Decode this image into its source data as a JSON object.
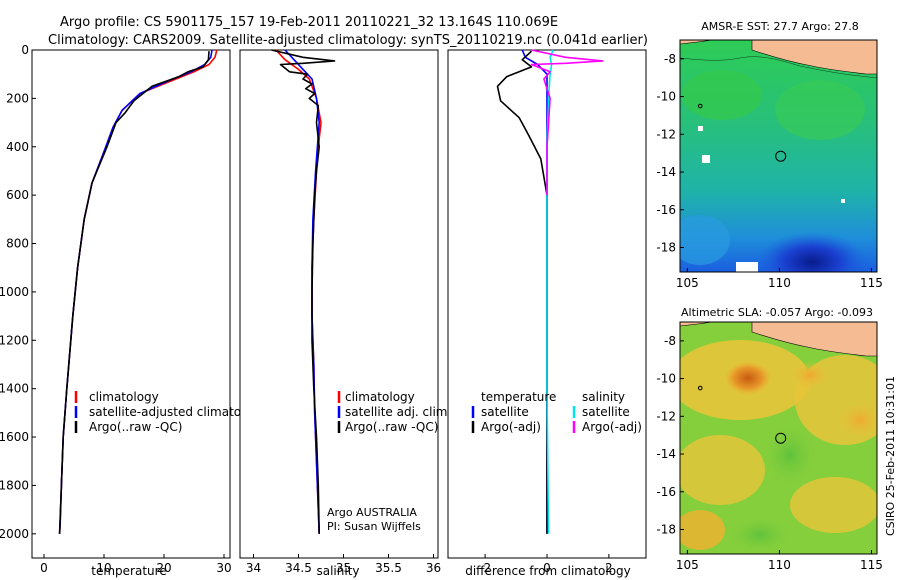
{
  "header": {
    "line1": "Argo profile: CS 5901175_157 19-Feb-2011 20110221_32 13.164S 110.069E",
    "line2": "Climatology: CARS2009. Satellite-adjusted climatology: synTS_20110219.nc (0.041d earlier)"
  },
  "side_label": "CSIRO 25-Feb-2011 10:31:01",
  "colors": {
    "climatology": "#ff0000",
    "satellite": "#0000ff",
    "argo": "#000000",
    "salinity_satellite": "#00e5ee",
    "salinity_argo": "#ff00ff",
    "land": "#f5bc94"
  },
  "chart_data": [
    {
      "id": "temperature",
      "type": "line",
      "xlabel": "temperature",
      "ylabel": "",
      "xlim": [
        -2,
        31
      ],
      "ylim": [
        2100,
        0
      ],
      "xticks": [
        0,
        10,
        20,
        30
      ],
      "yticks": [
        0,
        200,
        400,
        600,
        800,
        1000,
        1200,
        1400,
        1600,
        1800,
        2000
      ],
      "legend": [
        "climatology",
        "satellite-adjusted climatology",
        "Argo(..raw -QC)"
      ],
      "series": [
        {
          "name": "climatology",
          "color": "#ff0000",
          "x": [
            28.8,
            28.5,
            27.5,
            25,
            21,
            16,
            13,
            11.5,
            10,
            8,
            6.7,
            5.6,
            4.8,
            3.8,
            3.2,
            2.9,
            2.7,
            2.6
          ],
          "y": [
            0,
            30,
            60,
            90,
            130,
            180,
            250,
            320,
            420,
            550,
            700,
            900,
            1100,
            1400,
            1600,
            1800,
            1950,
            2000
          ]
        },
        {
          "name": "satellite-adjusted climatology",
          "color": "#0000ff",
          "x": [
            28,
            27.8,
            26.8,
            24.5,
            20.5,
            16,
            13,
            11.5,
            10,
            8,
            6.7,
            5.6,
            4.8,
            3.8,
            3.2,
            2.9,
            2.7,
            2.6
          ],
          "y": [
            0,
            30,
            60,
            90,
            130,
            180,
            250,
            320,
            420,
            550,
            700,
            900,
            1100,
            1400,
            1600,
            1800,
            1950,
            2000
          ]
        },
        {
          "name": "Argo(..raw -QC)",
          "color": "#000000",
          "x": [
            27.5,
            27.4,
            26.5,
            24,
            22.5,
            18,
            15,
            13.5,
            12,
            10.5,
            8,
            6.7,
            5.6,
            4.8,
            3.8,
            3.2,
            2.9,
            2.6
          ],
          "y": [
            5,
            40,
            70,
            90,
            110,
            150,
            210,
            260,
            300,
            400,
            550,
            700,
            900,
            1100,
            1400,
            1600,
            1800,
            2000
          ]
        }
      ]
    },
    {
      "id": "salinity",
      "type": "line",
      "xlabel": "salinity",
      "ylabel": "",
      "xlim": [
        33.85,
        36.05
      ],
      "ylim": [
        2100,
        0
      ],
      "xticks": [
        34,
        34.5,
        35,
        35.5,
        36
      ],
      "legend": [
        "climatology",
        "satellite adj. clim.",
        "Argo(..raw -QC)"
      ],
      "annotation": [
        "Argo AUSTRALIA",
        "PI: Susan Wijffels"
      ],
      "series": [
        {
          "name": "climatology",
          "color": "#ff0000",
          "x": [
            34.25,
            34.35,
            34.5,
            34.62,
            34.7,
            34.75,
            34.72,
            34.7,
            34.67,
            34.65,
            34.65,
            34.67,
            34.68,
            34.7,
            34.72,
            34.73
          ],
          "y": [
            0,
            40,
            80,
            120,
            200,
            300,
            400,
            500,
            700,
            900,
            1100,
            1300,
            1500,
            1700,
            1900,
            2000
          ]
        },
        {
          "name": "satellite adj. clim.",
          "color": "#0000ff",
          "x": [
            34.35,
            34.45,
            34.55,
            34.65,
            34.7,
            34.73,
            34.71,
            34.69,
            34.66,
            34.65,
            34.65,
            34.67,
            34.68,
            34.7,
            34.72,
            34.73
          ],
          "y": [
            0,
            40,
            80,
            120,
            200,
            300,
            400,
            500,
            700,
            900,
            1100,
            1300,
            1500,
            1700,
            1900,
            2000
          ]
        },
        {
          "name": "Argo(..raw -QC)",
          "color": "#000000",
          "x": [
            34.2,
            34.55,
            34.9,
            34.55,
            34.3,
            34.4,
            34.6,
            34.55,
            34.65,
            34.58,
            34.68,
            34.62,
            34.72,
            34.7,
            34.73,
            34.7,
            34.68,
            34.66,
            34.65,
            34.65,
            34.67,
            34.7,
            34.72,
            34.73
          ],
          "y": [
            0,
            30,
            45,
            55,
            60,
            90,
            100,
            120,
            140,
            160,
            180,
            200,
            230,
            300,
            400,
            500,
            600,
            800,
            1000,
            1200,
            1400,
            1600,
            1800,
            2000
          ]
        }
      ]
    },
    {
      "id": "difference",
      "type": "line",
      "xlabel": "difference from climatology",
      "ylabel": "",
      "xlim": [
        -3.2,
        3.2
      ],
      "ylim": [
        2100,
        0
      ],
      "xticks": [
        -2,
        0,
        2
      ],
      "legend_left": [
        "temperature",
        "satellite",
        "Argo(-adj)"
      ],
      "legend_right": [
        "salinity",
        "satellite",
        "Argo(-adj)"
      ],
      "series": [
        {
          "name": "temperature satellite",
          "color": "#0000ff",
          "x": [
            -0.8,
            -0.7,
            -0.3,
            0,
            0,
            0,
            0,
            0,
            0,
            0
          ],
          "y": [
            0,
            30,
            60,
            100,
            200,
            400,
            800,
            1200,
            1600,
            2000
          ]
        },
        {
          "name": "temperature Argo(-adj)",
          "color": "#000000",
          "x": [
            -0.5,
            -0.8,
            -0.5,
            -1.3,
            -1.6,
            -1.5,
            -0.9,
            -0.6,
            -0.2,
            0,
            0,
            0,
            0
          ],
          "y": [
            5,
            40,
            70,
            110,
            150,
            210,
            280,
            350,
            450,
            600,
            800,
            1200,
            2000
          ]
        },
        {
          "name": "salinity satellite",
          "color": "#00e5ee",
          "x": [
            0.2,
            0.1,
            0.15,
            0.1,
            0.05,
            0,
            0,
            0,
            0.05
          ],
          "y": [
            0,
            30,
            60,
            100,
            200,
            400,
            800,
            1400,
            2000
          ]
        },
        {
          "name": "salinity Argo(-adj)",
          "color": "#ff00ff",
          "x": [
            -0.5,
            0.6,
            1.8,
            0.6,
            -0.5,
            0.1,
            -0.1,
            0.1,
            0,
            0
          ],
          "y": [
            0,
            30,
            45,
            55,
            60,
            90,
            120,
            200,
            400,
            600
          ]
        }
      ]
    },
    {
      "id": "sst_map",
      "type": "heatmap",
      "title": "AMSR-E SST: 27.7 Argo: 27.8",
      "xlim": [
        104.6,
        115.3
      ],
      "ylim": [
        -19.3,
        -7
      ],
      "xticks": [
        105,
        110,
        115
      ],
      "yticks": [
        -8,
        -10,
        -12,
        -14,
        -16,
        -18
      ],
      "profile_marker": {
        "x": 110.07,
        "y": -13.16
      },
      "extra_marker": {
        "x": 105.7,
        "y": -10.5
      }
    },
    {
      "id": "sla_map",
      "type": "heatmap",
      "title": "Altimetric SLA: -0.057 Argo: -0.093",
      "xlim": [
        104.6,
        115.3
      ],
      "ylim": [
        -19.3,
        -7
      ],
      "xticks": [
        105,
        110,
        115
      ],
      "yticks": [
        -8,
        -10,
        -12,
        -14,
        -16,
        -18
      ],
      "profile_marker": {
        "x": 110.07,
        "y": -13.16
      },
      "extra_marker": {
        "x": 105.7,
        "y": -10.5
      }
    }
  ]
}
